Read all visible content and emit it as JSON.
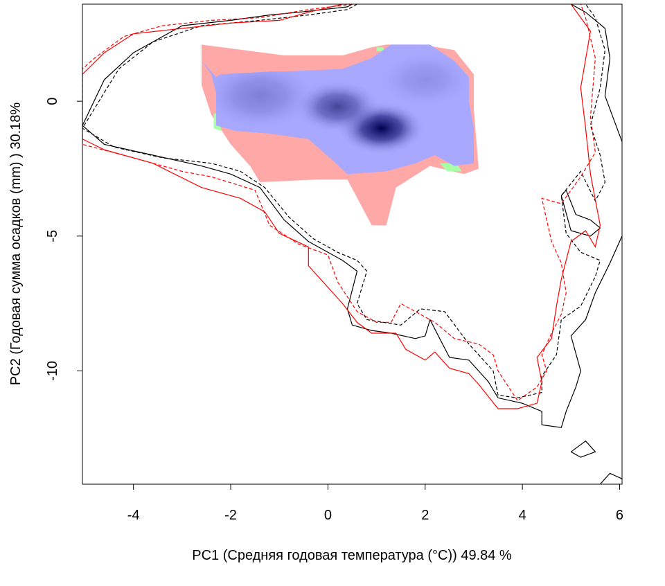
{
  "chart_data": {
    "type": "contour-density",
    "xlabel": "PC1 (Средняя годовая температура (°C)) 49.84 %",
    "ylabel": "PC2 (Годовая сумма осадков  (mm) ) 30.18%",
    "xlim": [
      -5.05,
      6.05
    ],
    "ylim": [
      -14.2,
      3.6
    ],
    "xticks": [
      -4,
      -2,
      0,
      2,
      4,
      6
    ],
    "yticks": [
      0,
      -5,
      -10
    ],
    "tick_labels_x": [
      "-4",
      "-2",
      "0",
      "2",
      "4",
      "6"
    ],
    "tick_labels_y": [
      "0",
      "-5",
      "-10"
    ],
    "colors": {
      "niche_only_A": "#ffa8a8",
      "overlap": "#a8a8ff",
      "niche_only_B": "#a8ffa8",
      "density_low": "#a8a8ff",
      "density_high": "#000050",
      "contour_A": "#000000",
      "contour_B": "#ff0000"
    },
    "niche_polygon_pink": [
      [
        -2.6,
        2.1
      ],
      [
        -0.9,
        1.7
      ],
      [
        0.3,
        1.7
      ],
      [
        0.9,
        2.0
      ],
      [
        1.2,
        2.1
      ],
      [
        1.9,
        2.1
      ],
      [
        2.6,
        1.9
      ],
      [
        3.0,
        1.0
      ],
      [
        3.0,
        -0.3
      ],
      [
        3.1,
        -2.5
      ],
      [
        2.8,
        -2.7
      ],
      [
        2.1,
        -2.4
      ],
      [
        1.4,
        -3.2
      ],
      [
        1.2,
        -4.6
      ],
      [
        0.9,
        -4.6
      ],
      [
        0.4,
        -2.9
      ],
      [
        -0.2,
        -2.9
      ],
      [
        -1.4,
        -3.0
      ],
      [
        -1.6,
        -2.4
      ],
      [
        -2.0,
        -1.6
      ],
      [
        -2.4,
        -0.5
      ],
      [
        -2.6,
        0.6
      ]
    ],
    "niche_polygon_blue": [
      [
        -2.6,
        1.5
      ],
      [
        -2.3,
        0.9
      ],
      [
        -2.2,
        1.0
      ],
      [
        -1.2,
        1.1
      ],
      [
        -0.9,
        1.1
      ],
      [
        0.3,
        1.2
      ],
      [
        0.9,
        1.6
      ],
      [
        1.3,
        2.1
      ],
      [
        2.1,
        2.1
      ],
      [
        2.6,
        1.5
      ],
      [
        2.9,
        0.9
      ],
      [
        2.9,
        0.0
      ],
      [
        3.0,
        -1.0
      ],
      [
        3.0,
        -2.3
      ],
      [
        2.6,
        -2.4
      ],
      [
        2.2,
        -2.0
      ],
      [
        1.8,
        -2.3
      ],
      [
        1.2,
        -2.6
      ],
      [
        0.4,
        -2.7
      ],
      [
        0.1,
        -2.2
      ],
      [
        -0.4,
        -1.4
      ],
      [
        -1.2,
        -1.2
      ],
      [
        -1.9,
        -1.1
      ],
      [
        -2.3,
        -0.9
      ],
      [
        -2.3,
        0.3
      ],
      [
        -2.4,
        1.0
      ]
    ],
    "niche_polygon_green": [
      [
        [
          -2.35,
          -0.45
        ],
        [
          -2.2,
          -0.45
        ],
        [
          -2.2,
          -1.1
        ],
        [
          -2.35,
          -1.0
        ]
      ],
      [
        [
          2.3,
          -2.3
        ],
        [
          2.65,
          -2.3
        ],
        [
          2.75,
          -2.6
        ],
        [
          2.45,
          -2.6
        ]
      ],
      [
        [
          1.0,
          2.0
        ],
        [
          1.15,
          2.0
        ],
        [
          1.15,
          1.85
        ],
        [
          1.0,
          1.85
        ]
      ]
    ],
    "density_peaks": [
      {
        "x": 1.1,
        "y": -1.0,
        "strength": 1.0,
        "radius": 0.9
      },
      {
        "x": 0.2,
        "y": -0.2,
        "strength": 0.6,
        "radius": 0.9
      },
      {
        "x": -1.4,
        "y": 0.2,
        "strength": 0.25,
        "radius": 1.2
      },
      {
        "x": 2.0,
        "y": 0.8,
        "strength": 0.15,
        "radius": 1.0
      }
    ],
    "series": [
      {
        "style": "solid",
        "color": "#000000",
        "points": [
          [
            0.5,
            3.6
          ],
          [
            0.4,
            3.5
          ],
          [
            -0.6,
            3.3
          ],
          [
            -1.2,
            3.2
          ],
          [
            -2.0,
            3.0
          ],
          [
            -3.0,
            2.8
          ],
          [
            -4.0,
            1.8
          ],
          [
            -4.6,
            0.8
          ],
          [
            -5.05,
            -0.9
          ],
          [
            -4.6,
            -1.6
          ],
          [
            -3.6,
            -2.0
          ],
          [
            -2.6,
            -2.4
          ],
          [
            -2.0,
            -2.7
          ],
          [
            -1.4,
            -3.2
          ],
          [
            -0.9,
            -4.4
          ],
          [
            -0.4,
            -5.2
          ],
          [
            0.1,
            -5.7
          ],
          [
            0.3,
            -5.9
          ],
          [
            0.6,
            -6.3
          ],
          [
            0.4,
            -7.7
          ],
          [
            0.5,
            -8.3
          ],
          [
            0.9,
            -8.5
          ],
          [
            1.3,
            -8.6
          ],
          [
            1.8,
            -8.8
          ],
          [
            2.0,
            -8.7
          ],
          [
            2.1,
            -8.1
          ],
          [
            2.3,
            -8.8
          ],
          [
            2.5,
            -9.5
          ],
          [
            2.9,
            -9.6
          ],
          [
            3.3,
            -10.4
          ],
          [
            3.5,
            -11.0
          ],
          [
            4.0,
            -11.2
          ],
          [
            4.4,
            -11.5
          ],
          [
            4.4,
            -12.0
          ],
          [
            4.8,
            -12.1
          ],
          [
            4.9,
            -11.5
          ],
          [
            5.1,
            -10.6
          ],
          [
            5.2,
            -10.0
          ],
          [
            5.0,
            -8.7
          ],
          [
            5.3,
            -8.1
          ],
          [
            5.5,
            -7.1
          ],
          [
            5.8,
            -6.0
          ],
          [
            6.05,
            -5.0
          ]
        ]
      },
      {
        "style": "solid",
        "color": "#000000",
        "points": [
          [
            5.0,
            3.6
          ],
          [
            5.3,
            3.3
          ],
          [
            5.7,
            2.7
          ],
          [
            5.8,
            1.6
          ],
          [
            5.7,
            0.2
          ],
          [
            6.05,
            -1.5
          ]
        ]
      },
      {
        "style": "solid",
        "color": "#000000",
        "points": [
          [
            4.8,
            -3.5
          ],
          [
            5.0,
            -4.8
          ],
          [
            5.4,
            -5.0
          ],
          [
            5.6,
            -4.7
          ],
          [
            5.4,
            -4.4
          ],
          [
            5.1,
            -4.2
          ],
          [
            4.9,
            -3.3
          ],
          [
            4.8,
            -3.5
          ]
        ]
      },
      {
        "style": "solid",
        "color": "#000000",
        "points": [
          [
            5.0,
            -13.0
          ],
          [
            5.2,
            -13.2
          ],
          [
            5.5,
            -13.0
          ],
          [
            5.3,
            -12.6
          ],
          [
            5.0,
            -13.0
          ]
        ]
      },
      {
        "style": "solid",
        "color": "#000000",
        "points": [
          [
            5.6,
            -14.2
          ],
          [
            5.8,
            -13.8
          ],
          [
            6.05,
            -14.0
          ]
        ]
      },
      {
        "style": "dashed",
        "color": "#000000",
        "points": [
          [
            0.6,
            3.6
          ],
          [
            0.4,
            3.4
          ],
          [
            -0.4,
            3.2
          ],
          [
            -1.4,
            3.0
          ],
          [
            -2.6,
            2.8
          ],
          [
            -3.6,
            2.2
          ],
          [
            -4.3,
            1.2
          ],
          [
            -5.05,
            -1.0
          ],
          [
            -4.4,
            -1.7
          ],
          [
            -3.4,
            -2.1
          ],
          [
            -2.4,
            -2.3
          ],
          [
            -1.8,
            -2.6
          ],
          [
            -1.3,
            -3.2
          ],
          [
            -0.8,
            -4.3
          ],
          [
            -0.3,
            -5.1
          ],
          [
            0.2,
            -5.6
          ],
          [
            0.6,
            -5.9
          ],
          [
            0.8,
            -6.3
          ],
          [
            0.6,
            -7.5
          ],
          [
            0.8,
            -8.1
          ],
          [
            1.5,
            -8.3
          ],
          [
            1.9,
            -7.7
          ],
          [
            2.4,
            -7.8
          ],
          [
            2.9,
            -9.0
          ],
          [
            3.4,
            -10.0
          ],
          [
            3.5,
            -10.9
          ],
          [
            3.9,
            -11.0
          ],
          [
            4.4,
            -10.8
          ],
          [
            4.4,
            -10.2
          ],
          [
            4.7,
            -9.4
          ],
          [
            4.8,
            -8.1
          ],
          [
            5.2,
            -7.6
          ],
          [
            5.5,
            -6.5
          ],
          [
            5.6,
            -5.9
          ],
          [
            5.2,
            -5.6
          ],
          [
            4.9,
            -4.9
          ],
          [
            4.8,
            -3.5
          ],
          [
            5.2,
            -2.6
          ],
          [
            5.5,
            -3.7
          ],
          [
            5.7,
            -3.0
          ],
          [
            5.6,
            -2.0
          ],
          [
            5.4,
            -0.9
          ],
          [
            5.6,
            0.5
          ],
          [
            5.7,
            1.9
          ],
          [
            5.5,
            3.1
          ],
          [
            5.3,
            3.6
          ]
        ]
      },
      {
        "style": "solid",
        "color": "#ff0000",
        "points": [
          [
            0.3,
            3.6
          ],
          [
            -0.4,
            3.3
          ],
          [
            -1.0,
            3.0
          ],
          [
            -2.0,
            2.9
          ],
          [
            -3.0,
            2.7
          ],
          [
            -4.0,
            2.5
          ],
          [
            -4.6,
            1.8
          ],
          [
            -5.05,
            1.0
          ],
          [
            -5.05,
            -1.4
          ],
          [
            -4.6,
            -1.8
          ],
          [
            -3.6,
            -2.3
          ],
          [
            -2.6,
            -3.2
          ],
          [
            -1.8,
            -3.6
          ],
          [
            -1.3,
            -4.1
          ],
          [
            -1.0,
            -4.9
          ],
          [
            -0.4,
            -5.4
          ],
          [
            -0.4,
            -6.1
          ],
          [
            0.3,
            -7.5
          ],
          [
            0.6,
            -8.2
          ],
          [
            0.9,
            -8.6
          ],
          [
            1.4,
            -8.6
          ],
          [
            1.6,
            -9.2
          ],
          [
            2.0,
            -9.6
          ],
          [
            2.2,
            -9.3
          ],
          [
            2.5,
            -9.9
          ],
          [
            2.9,
            -10.1
          ],
          [
            3.1,
            -10.5
          ],
          [
            3.5,
            -11.4
          ],
          [
            3.9,
            -11.4
          ],
          [
            4.3,
            -11.2
          ],
          [
            4.4,
            -10.4
          ],
          [
            4.3,
            -9.5
          ],
          [
            4.6,
            -8.8
          ],
          [
            4.7,
            -7.6
          ],
          [
            4.8,
            -6.6
          ],
          [
            5.0,
            -5.2
          ],
          [
            5.3,
            -4.8
          ],
          [
            5.5,
            -5.4
          ],
          [
            5.6,
            -4.6
          ],
          [
            5.4,
            -2.7
          ],
          [
            5.3,
            -1.0
          ],
          [
            5.2,
            0.5
          ],
          [
            5.4,
            2.6
          ],
          [
            5.0,
            3.6
          ]
        ]
      },
      {
        "style": "dashed",
        "color": "#ff0000",
        "points": [
          [
            0.5,
            3.6
          ],
          [
            -0.4,
            3.4
          ],
          [
            -1.4,
            3.1
          ],
          [
            -2.4,
            3.0
          ],
          [
            -3.4,
            2.8
          ],
          [
            -4.2,
            2.4
          ],
          [
            -4.8,
            1.6
          ],
          [
            -5.05,
            1.2
          ],
          [
            -5.05,
            -1.6
          ],
          [
            -4.0,
            -2.1
          ],
          [
            -3.0,
            -2.6
          ],
          [
            -2.4,
            -2.8
          ],
          [
            -1.5,
            -3.3
          ],
          [
            -1.2,
            -4.6
          ],
          [
            -0.6,
            -5.3
          ],
          [
            0.0,
            -5.7
          ],
          [
            0.2,
            -6.7
          ],
          [
            0.6,
            -7.8
          ],
          [
            1.0,
            -8.2
          ],
          [
            1.3,
            -8.2
          ],
          [
            1.5,
            -7.5
          ],
          [
            1.8,
            -7.8
          ],
          [
            2.2,
            -8.2
          ],
          [
            2.6,
            -8.8
          ],
          [
            3.1,
            -9.0
          ],
          [
            3.4,
            -9.4
          ],
          [
            3.5,
            -10.0
          ],
          [
            3.9,
            -11.1
          ],
          [
            4.3,
            -10.6
          ],
          [
            4.5,
            -10.0
          ],
          [
            4.4,
            -9.4
          ],
          [
            4.6,
            -8.6
          ],
          [
            4.8,
            -7.9
          ],
          [
            4.9,
            -7.1
          ],
          [
            4.8,
            -6.0
          ],
          [
            4.6,
            -5.2
          ],
          [
            4.4,
            -3.6
          ],
          [
            4.8,
            -3.8
          ],
          [
            5.2,
            -2.8
          ],
          [
            5.5,
            -1.9
          ],
          [
            5.4,
            -0.6
          ],
          [
            5.5,
            1.6
          ],
          [
            5.3,
            3.1
          ],
          [
            5.2,
            3.6
          ]
        ]
      }
    ]
  }
}
